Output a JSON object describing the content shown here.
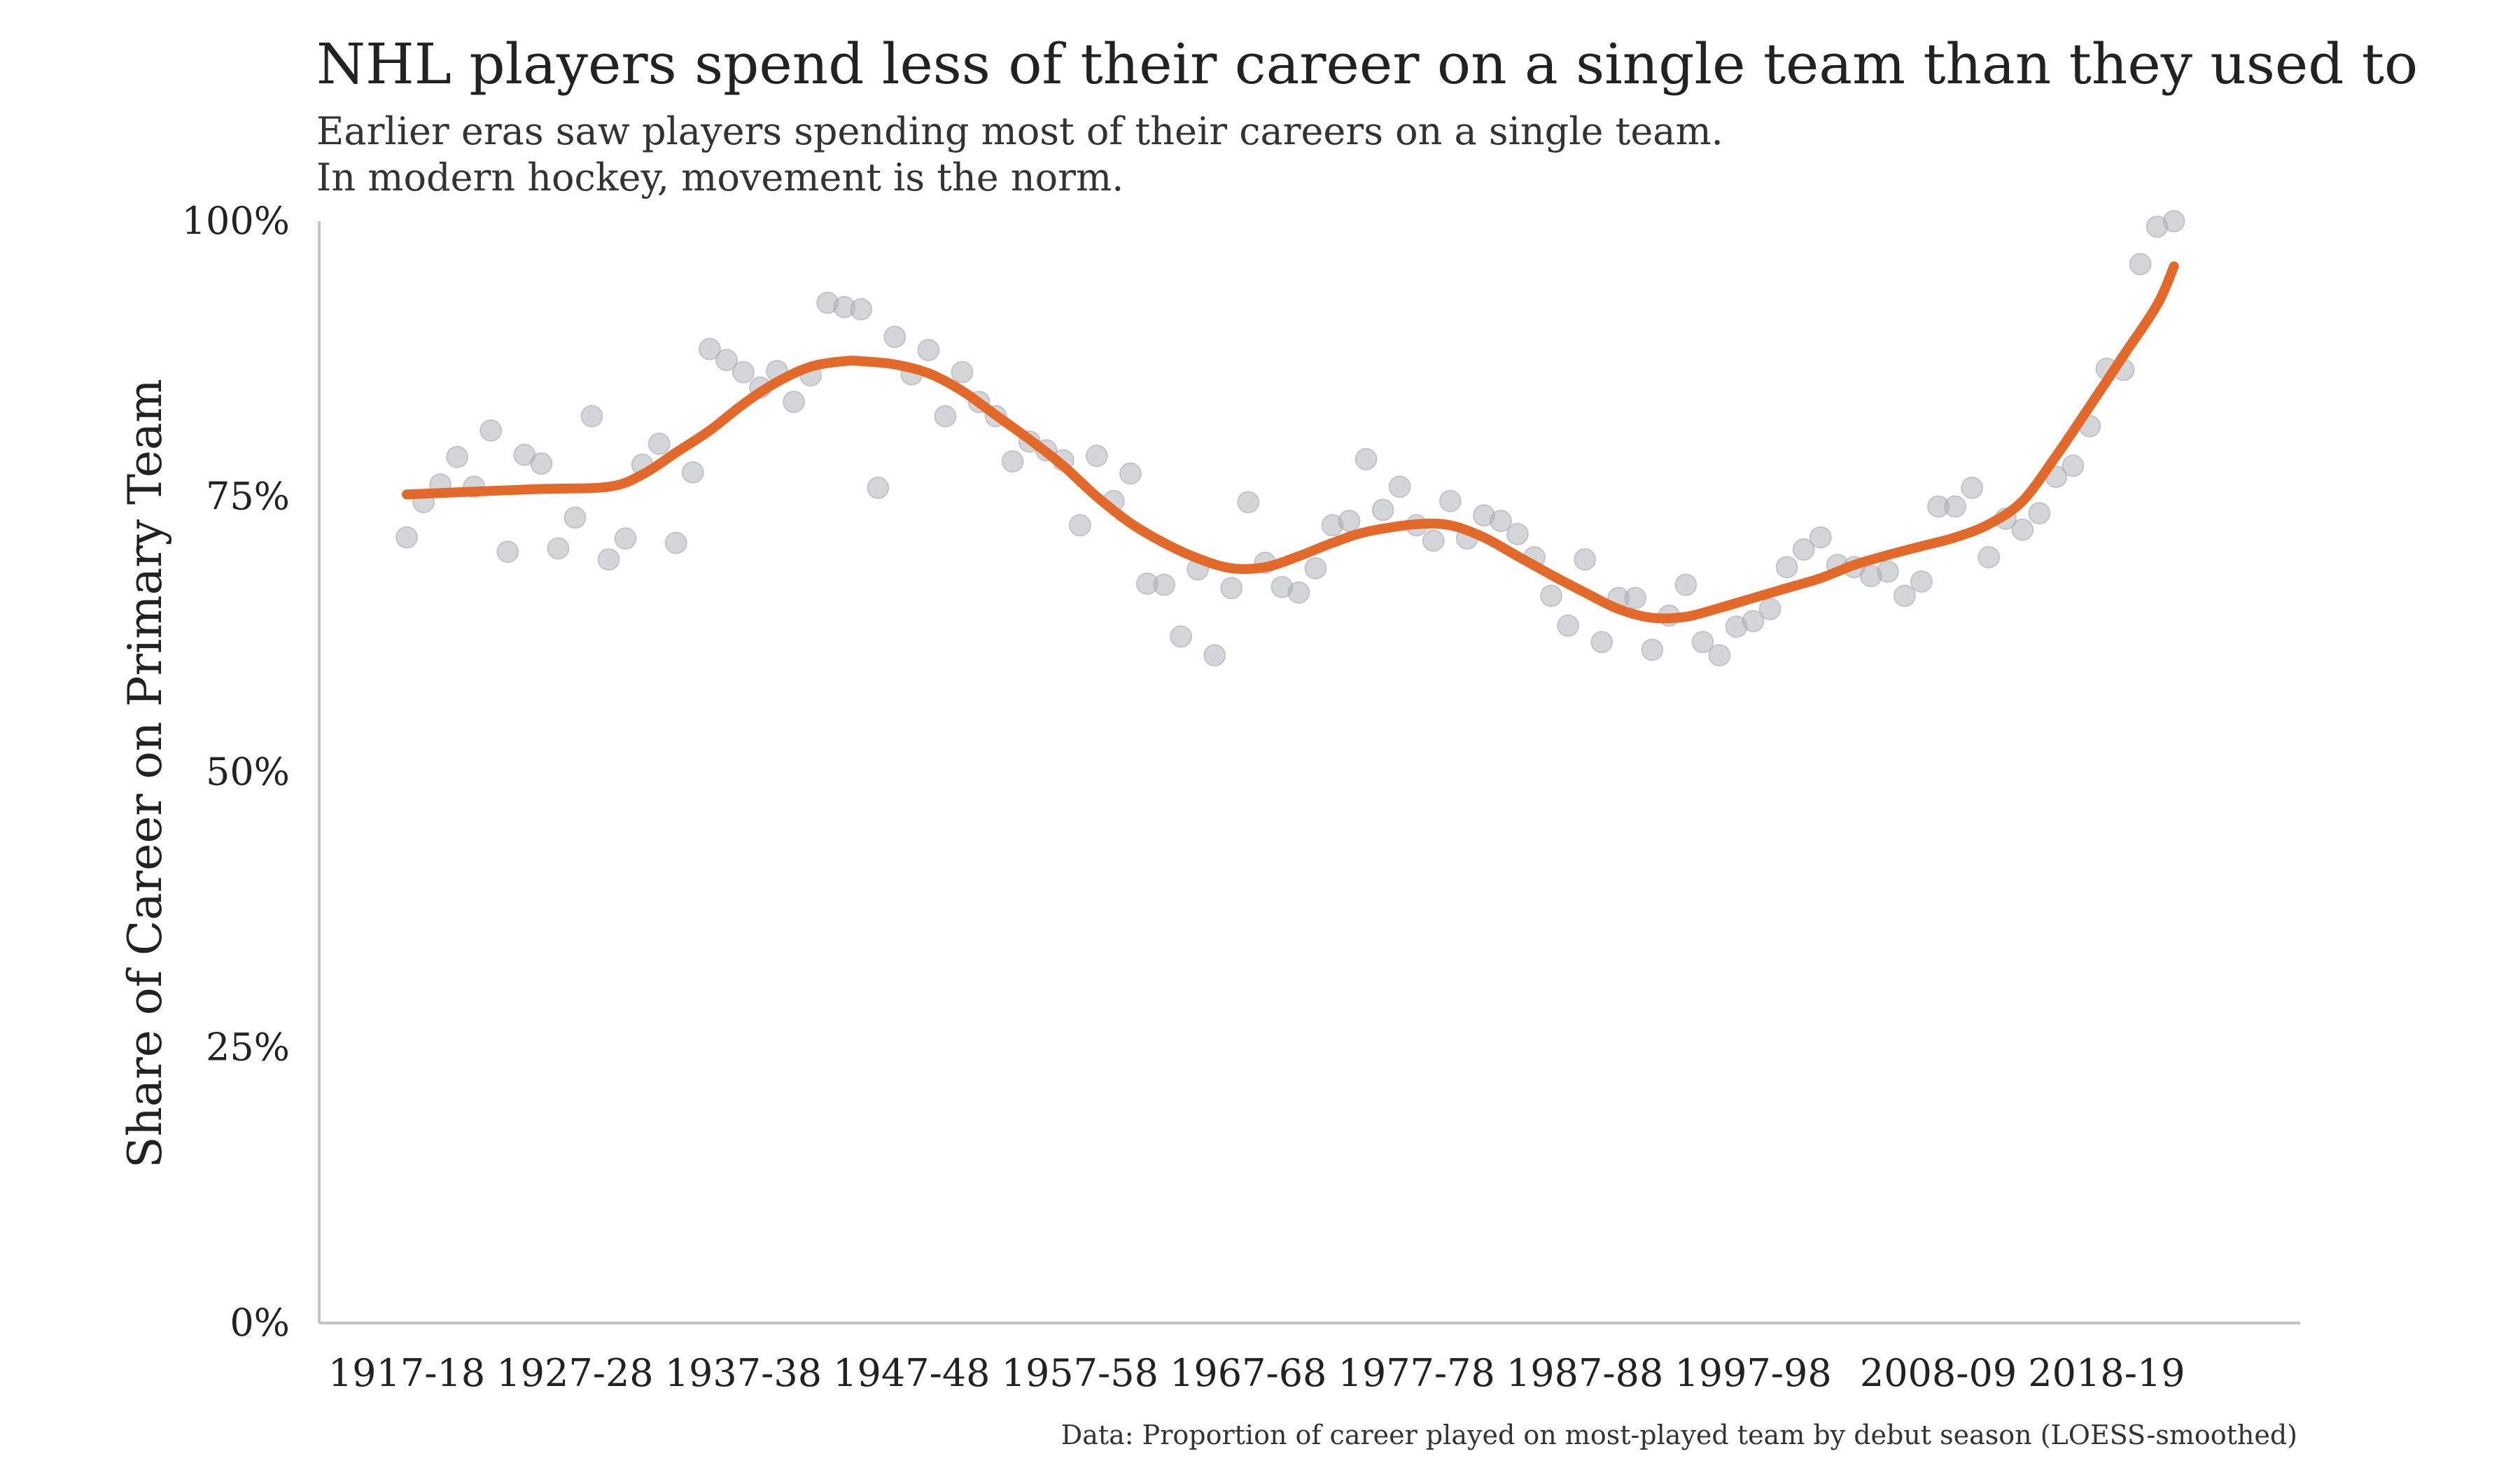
{
  "chart_data": {
    "type": "scatter",
    "title": "NHL players spend less of their career on a single team than they used to",
    "subtitle": [
      "Earlier eras saw players spending most of their careers on a single team.",
      "In modern hockey, movement is the norm."
    ],
    "xlabel": "",
    "ylabel": "Share of Career on Primary Team",
    "caption": "Data: Proportion of career played on most-played team by debut season (LOESS-smoothed)",
    "x_tick_labels": [
      "1917-18",
      "1927-28",
      "1937-38",
      "1947-48",
      "1957-58",
      "1967-68",
      "1977-78",
      "1987-88",
      "1997-98",
      "2008-09",
      "2018-19"
    ],
    "y_tick_labels": [
      "0%",
      "25%",
      "50%",
      "75%",
      "100%"
    ],
    "ylim": [
      0,
      100
    ],
    "xlim": [
      1911.8,
      2029.5
    ],
    "grid": false,
    "legend": "none",
    "series": [
      {
        "kind": "points",
        "color": "#a9adb5",
        "x": [
          1917,
          1918,
          1919,
          1920,
          1921,
          1922,
          1923,
          1924,
          1925,
          1926,
          1927,
          1928,
          1929,
          1930,
          1931,
          1932,
          1933,
          1934,
          1935,
          1936,
          1937,
          1938,
          1939,
          1940,
          1941,
          1942,
          1943,
          1944,
          1945,
          1946,
          1947,
          1948,
          1949,
          1950,
          1951,
          1952,
          1953,
          1954,
          1955,
          1956,
          1957,
          1958,
          1959,
          1960,
          1961,
          1962,
          1963,
          1964,
          1965,
          1966,
          1967,
          1968,
          1969,
          1970,
          1971,
          1972,
          1973,
          1974,
          1975,
          1976,
          1977,
          1978,
          1979,
          1980,
          1981,
          1982,
          1983,
          1984,
          1985,
          1986,
          1987,
          1988,
          1989,
          1990,
          1991,
          1992,
          1993,
          1994,
          1995,
          1996,
          1997,
          1998,
          1999,
          2000,
          2001,
          2002,
          2003,
          2004,
          2005,
          2006,
          2007,
          2008,
          2009,
          2010,
          2011,
          2012,
          2013,
          2014,
          2015,
          2016,
          2017,
          2018,
          2019,
          2020,
          2021,
          2022
        ],
        "y": [
          71.3,
          74.5,
          76.1,
          78.6,
          75.9,
          81.0,
          70.0,
          78.8,
          78.0,
          70.3,
          73.1,
          82.3,
          69.3,
          71.2,
          77.9,
          79.8,
          70.8,
          77.2,
          88.4,
          87.4,
          86.3,
          84.9,
          86.4,
          83.6,
          86.0,
          92.6,
          92.2,
          92.0,
          75.8,
          89.5,
          86.1,
          88.3,
          82.3,
          86.3,
          83.6,
          82.3,
          78.2,
          80.0,
          79.2,
          78.3,
          72.4,
          78.7,
          74.6,
          77.1,
          67.1,
          67.0,
          62.3,
          68.4,
          60.6,
          66.7,
          74.5,
          69.0,
          66.8,
          66.3,
          68.5,
          72.4,
          72.8,
          78.4,
          73.8,
          75.9,
          72.4,
          71.0,
          74.6,
          71.2,
          73.3,
          72.8,
          71.6,
          69.5,
          66.0,
          63.3,
          69.3,
          61.8,
          65.8,
          65.8,
          61.1,
          64.2,
          67.0,
          61.8,
          60.6,
          63.2,
          63.7,
          64.8,
          68.6,
          70.2,
          71.3,
          68.8,
          68.6,
          67.8,
          68.2,
          66.0,
          67.3,
          74.1,
          74.1,
          75.8,
          69.5,
          73.0,
          72.0,
          73.5,
          76.8,
          77.8,
          81.4,
          86.6,
          86.5,
          96.1,
          99.5,
          100.0
        ]
      },
      {
        "kind": "smooth_line",
        "color": "#e3692a",
        "x": [
          1917,
          1920,
          1925,
          1929,
          1931,
          1933,
          1935,
          1937,
          1939,
          1941,
          1943,
          1944,
          1946,
          1948,
          1950,
          1952,
          1954,
          1956,
          1958,
          1960,
          1962,
          1964,
          1966,
          1968,
          1970,
          1972,
          1974,
          1977,
          1979,
          1981,
          1983,
          1985,
          1987,
          1989,
          1991,
          1993,
          1995,
          1997,
          1999,
          2001,
          2003,
          2005,
          2007,
          2009,
          2011,
          2013,
          2015,
          2017,
          2019,
          2021,
          2022
        ],
        "y": [
          75.2,
          75.4,
          75.7,
          75.9,
          77.0,
          79.0,
          81.0,
          83.4,
          85.4,
          86.8,
          87.3,
          87.3,
          87.0,
          86.2,
          84.6,
          82.4,
          80.2,
          77.8,
          75.0,
          72.6,
          70.8,
          69.4,
          68.5,
          68.6,
          69.6,
          70.8,
          71.8,
          72.5,
          72.4,
          71.3,
          69.6,
          67.9,
          66.3,
          64.8,
          64.0,
          64.1,
          64.9,
          65.8,
          66.7,
          67.6,
          68.8,
          69.7,
          70.5,
          71.3,
          72.5,
          74.6,
          78.7,
          83.2,
          87.8,
          92.4,
          95.9
        ]
      }
    ]
  }
}
